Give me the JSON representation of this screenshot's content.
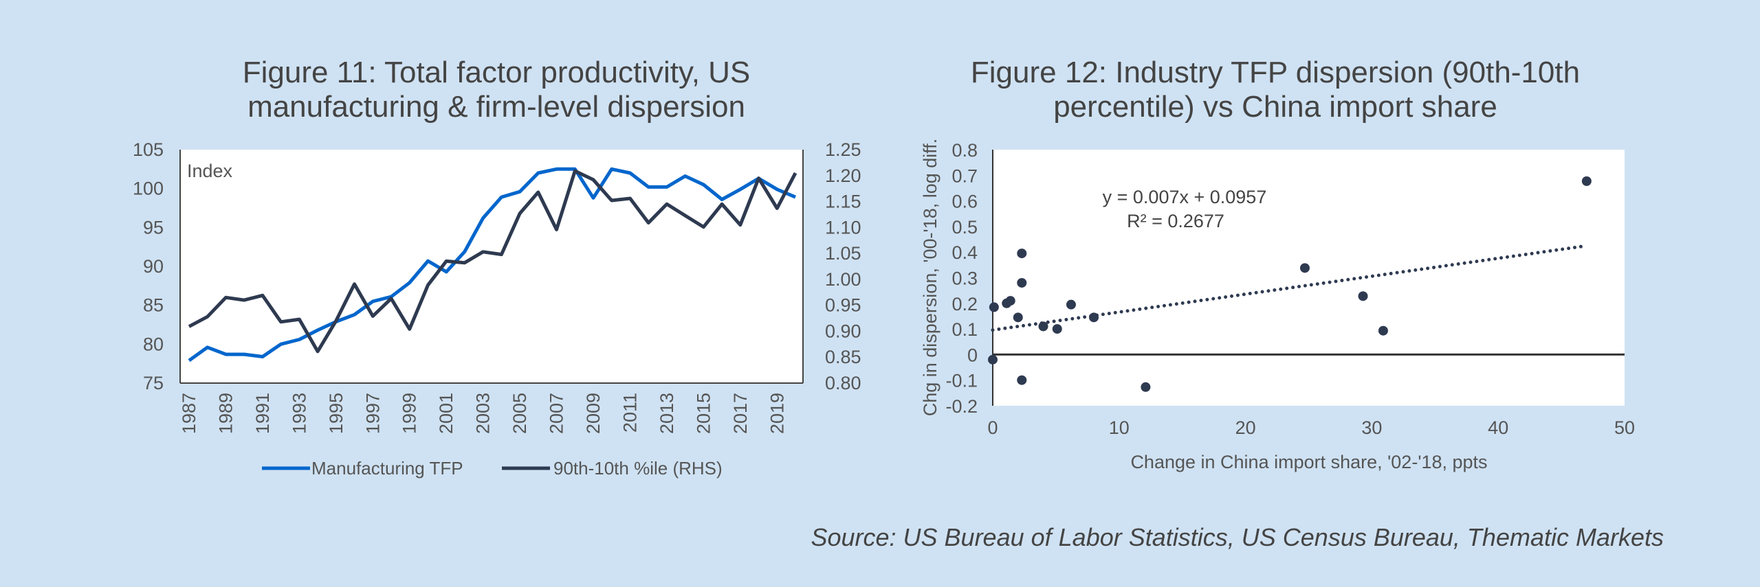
{
  "colors": {
    "background": "#cfe2f3",
    "tfp_line": "#0066cc",
    "dispersion_line": "#2e3a50",
    "scatter": "#2e3a50"
  },
  "chart_data": [
    {
      "type": "line",
      "title_lines": [
        "Figure 11: Total factor productivity, US",
        "manufacturing & firm-level dispersion"
      ],
      "ylabel": "Index",
      "ylim": [
        75,
        105
      ],
      "yticks": [
        "105",
        "100",
        "95",
        "90",
        "85",
        "80",
        "75"
      ],
      "y2lim": [
        0.8,
        1.25
      ],
      "y2ticks": [
        "1.25",
        "1.20",
        "1.15",
        "1.10",
        "1.05",
        "1.00",
        "0.95",
        "0.90",
        "0.85",
        "0.80"
      ],
      "xtick_labels": [
        "1987",
        "1989",
        "1991",
        "1993",
        "1995",
        "1997",
        "1999",
        "2001",
        "2003",
        "2005",
        "2007",
        "2009",
        "2011",
        "2013",
        "2015",
        "2017",
        "2019"
      ],
      "grid": false,
      "legend": "bottom",
      "x": [
        1987,
        1988,
        1989,
        1990,
        1991,
        1992,
        1993,
        1994,
        1995,
        1996,
        1997,
        1998,
        1999,
        2000,
        2001,
        2002,
        2003,
        2004,
        2005,
        2006,
        2007,
        2008,
        2009,
        2010,
        2011,
        2012,
        2013,
        2014,
        2015,
        2016,
        2017,
        2018,
        2019,
        2020
      ],
      "series": [
        {
          "name": "Manufacturing TFP",
          "axis": "left",
          "values": [
            77.9,
            79.6,
            78.7,
            78.7,
            78.4,
            80.0,
            80.6,
            81.8,
            82.9,
            83.8,
            85.5,
            86.1,
            87.9,
            90.7,
            89.3,
            91.9,
            96.2,
            98.9,
            99.6,
            102.0,
            102.5,
            102.5,
            98.8,
            102.5,
            102.0,
            100.2,
            100.2,
            101.6,
            100.5,
            98.6,
            99.9,
            101.3,
            99.9,
            98.9
          ]
        },
        {
          "name": "90th-10th %ile (RHS)",
          "axis": "right",
          "values": [
            0.909,
            0.928,
            0.965,
            0.96,
            0.969,
            0.918,
            0.923,
            0.861,
            0.92,
            0.991,
            0.929,
            0.963,
            0.904,
            0.989,
            1.035,
            1.032,
            1.053,
            1.048,
            1.127,
            1.168,
            1.096,
            1.209,
            1.192,
            1.152,
            1.156,
            1.109,
            1.145,
            1.123,
            1.101,
            1.145,
            1.105,
            1.195,
            1.137,
            1.205
          ]
        }
      ]
    },
    {
      "type": "scatter",
      "title_lines": [
        "Figure 12: Industry TFP dispersion (90th-10th",
        "percentile) vs China import share"
      ],
      "xlabel": "Change in China import share, '02-'18, ppts",
      "ylabel": "Chg in dispersion, '00-'18, log diff.",
      "xlim": [
        0,
        50
      ],
      "ylim": [
        -0.2,
        0.8
      ],
      "xticks": [
        "0",
        "10",
        "20",
        "30",
        "40",
        "50"
      ],
      "yticks": [
        "0.8",
        "0.7",
        "0.6",
        "0.5",
        "0.4",
        "0.3",
        "0.2",
        "0.1",
        "0",
        "-0.1",
        "-0.2"
      ],
      "grid": false,
      "points": [
        [
          0,
          -0.02
        ],
        [
          0.1,
          0.185
        ],
        [
          1.1,
          0.2
        ],
        [
          1.4,
          0.21
        ],
        [
          2.0,
          0.145
        ],
        [
          2.3,
          0.395
        ],
        [
          2.3,
          0.28
        ],
        [
          2.3,
          -0.1
        ],
        [
          4.0,
          0.11
        ],
        [
          5.1,
          0.1
        ],
        [
          6.2,
          0.195
        ],
        [
          8.0,
          0.145
        ],
        [
          12.1,
          -0.127
        ],
        [
          24.7,
          0.338
        ],
        [
          29.3,
          0.228
        ],
        [
          30.9,
          0.093
        ],
        [
          47.0,
          0.677
        ]
      ],
      "trendline": {
        "slope": 0.007,
        "intercept": 0.0957,
        "x_range": [
          0,
          47
        ],
        "style": "dotted"
      },
      "annotations": [
        "y = 0.007x + 0.0957",
        "R² = 0.2677"
      ]
    }
  ],
  "source": "Source: US Bureau of Labor Statistics, US Census Bureau, Thematic Markets"
}
